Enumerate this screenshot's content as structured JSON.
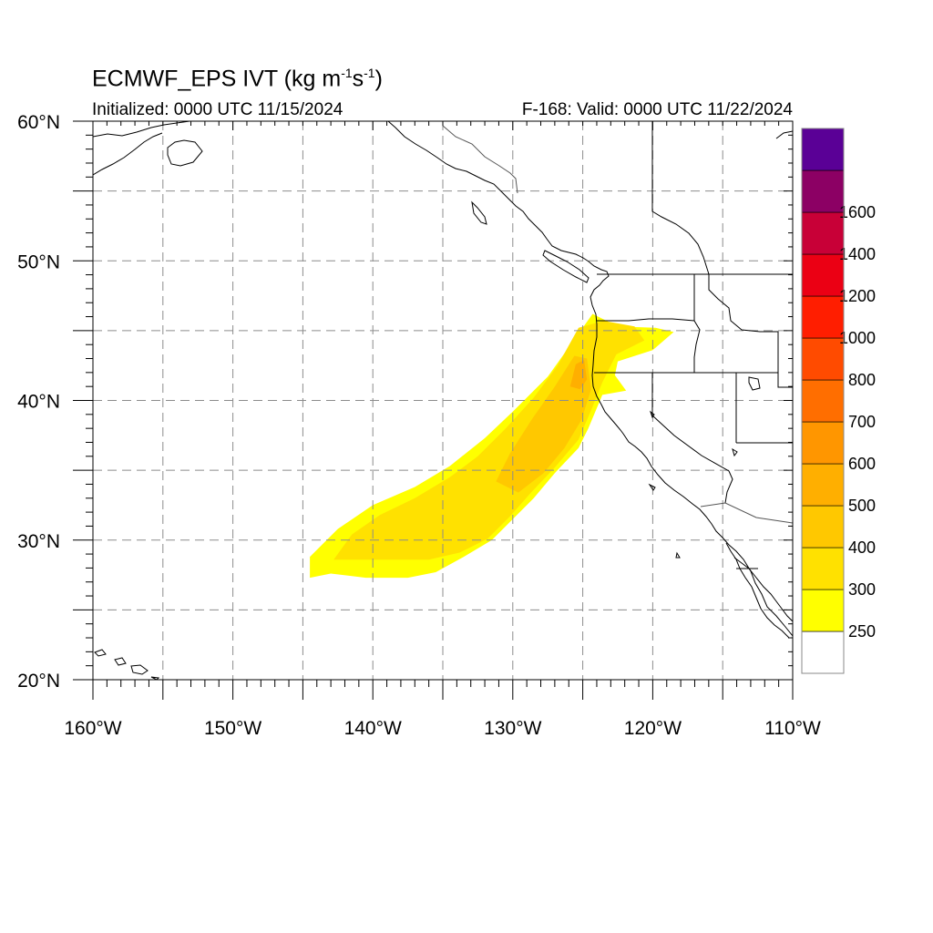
{
  "header": {
    "title_main": "ECMWF_EPS IVT (kg m",
    "title_sup1": "-1",
    "title_mid": "s",
    "title_sup2": "-1",
    "title_end": ")",
    "initialized": "Initialized: 0000 UTC 11/15/2024",
    "valid": "F-168: Valid: 0000 UTC 11/22/2024"
  },
  "map": {
    "lon_range": [
      -160,
      -110
    ],
    "lat_range": [
      20,
      60
    ],
    "lat_ticks": [
      {
        "lat": 60,
        "label": "60°N"
      },
      {
        "lat": 50,
        "label": "50°N"
      },
      {
        "lat": 40,
        "label": "40°N"
      },
      {
        "lat": 30,
        "label": "30°N"
      },
      {
        "lat": 20,
        "label": "20°N"
      }
    ],
    "lon_ticks": [
      {
        "lon": -160,
        "label": "160°W"
      },
      {
        "lon": -150,
        "label": "150°W"
      },
      {
        "lon": -140,
        "label": "140°W"
      },
      {
        "lon": -130,
        "label": "130°W"
      },
      {
        "lon": -120,
        "label": "120°W"
      },
      {
        "lon": -110,
        "label": "110°W"
      }
    ],
    "grid_interval_deg": 5,
    "grid_style": "dashed gray",
    "ivt_field": [
      {
        "level": 250,
        "color": "#ffff00",
        "polygon": [
          [
            -144.5,
            27.3
          ],
          [
            -144.5,
            28.8
          ],
          [
            -142.5,
            30.8
          ],
          [
            -140,
            32.5
          ],
          [
            -137,
            33.8
          ],
          [
            -134.5,
            35.3
          ],
          [
            -132,
            37.3
          ],
          [
            -130,
            39.2
          ],
          [
            -127.5,
            41.7
          ],
          [
            -125.5,
            44.5
          ],
          [
            -124.3,
            46.2
          ],
          [
            -122.5,
            45.3
          ],
          [
            -119.8,
            45.2
          ],
          [
            -118.5,
            44.9
          ],
          [
            -120,
            43.6
          ],
          [
            -122.5,
            42.8
          ],
          [
            -122.7,
            41.8
          ],
          [
            -121.9,
            40.7
          ],
          [
            -123.6,
            40.4
          ],
          [
            -124.6,
            38
          ],
          [
            -125.3,
            36.6
          ],
          [
            -127,
            34.8
          ],
          [
            -128.5,
            33
          ],
          [
            -130,
            31.5
          ],
          [
            -131.5,
            30
          ],
          [
            -133.5,
            28.8
          ],
          [
            -135.5,
            27.7
          ],
          [
            -137.5,
            27.3
          ],
          [
            -140.5,
            27.3
          ],
          [
            -143,
            27.6
          ]
        ]
      },
      {
        "level": 300,
        "color": "#ffe100",
        "polygon": [
          [
            -142.8,
            28.6
          ],
          [
            -141.5,
            30.4
          ],
          [
            -139.5,
            31.8
          ],
          [
            -137,
            33
          ],
          [
            -134.5,
            34.5
          ],
          [
            -132.5,
            36
          ],
          [
            -130.5,
            38
          ],
          [
            -128.5,
            40.2
          ],
          [
            -126.8,
            42.5
          ],
          [
            -125.3,
            45.2
          ],
          [
            -123.5,
            45.7
          ],
          [
            -121.3,
            45.3
          ],
          [
            -120.6,
            44.3
          ],
          [
            -122.6,
            43.3
          ],
          [
            -123.6,
            41.3
          ],
          [
            -124.4,
            39.3
          ],
          [
            -125.3,
            37.2
          ],
          [
            -127,
            35.2
          ],
          [
            -128.7,
            33.4
          ],
          [
            -130.2,
            31.7
          ],
          [
            -131.8,
            30.1
          ],
          [
            -133.8,
            29.1
          ],
          [
            -136,
            28.6
          ],
          [
            -138.5,
            28.6
          ],
          [
            -141,
            28.6
          ]
        ]
      },
      {
        "level": 400,
        "color": "#ffc800",
        "polygon": [
          [
            -131.2,
            34.2
          ],
          [
            -130.2,
            36.2
          ],
          [
            -128.6,
            38.7
          ],
          [
            -127,
            41
          ],
          [
            -125.6,
            43.2
          ],
          [
            -124.7,
            43
          ],
          [
            -124.4,
            40.8
          ],
          [
            -125.1,
            38.6
          ],
          [
            -126.3,
            36.6
          ],
          [
            -127.8,
            34.8
          ],
          [
            -129.6,
            33.4
          ]
        ]
      },
      {
        "level": 500,
        "color": "#ffaf00",
        "polygon": [
          [
            -125.9,
            41
          ],
          [
            -125.5,
            42.6
          ],
          [
            -124.9,
            42.9
          ],
          [
            -124.7,
            41.5
          ],
          [
            -125.2,
            40.8
          ]
        ]
      }
    ],
    "coast_color": "#000000",
    "border_color": "#000000"
  },
  "colorbar": {
    "levels": [
      {
        "label": "",
        "color": "#ffffff"
      },
      {
        "label": "250",
        "color": "#ffff00"
      },
      {
        "label": "300",
        "color": "#ffe100"
      },
      {
        "label": "400",
        "color": "#ffc800"
      },
      {
        "label": "500",
        "color": "#ffaf00"
      },
      {
        "label": "600",
        "color": "#ff9600"
      },
      {
        "label": "700",
        "color": "#ff6e00"
      },
      {
        "label": "800",
        "color": "#ff4b00"
      },
      {
        "label": "1000",
        "color": "#ff1e00"
      },
      {
        "label": "1200",
        "color": "#eb0014"
      },
      {
        "label": "1400",
        "color": "#c80037"
      },
      {
        "label": "1600",
        "color": "#8c0064"
      },
      {
        "label": "",
        "color": "#5a0096"
      }
    ]
  }
}
